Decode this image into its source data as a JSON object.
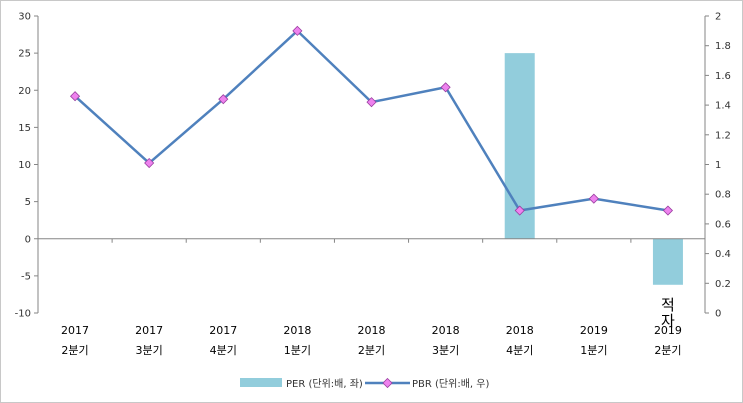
{
  "chart_data": {
    "type": "bar+line",
    "categories": [
      [
        "2017",
        "2분기"
      ],
      [
        "2017",
        "3분기"
      ],
      [
        "2017",
        "4분기"
      ],
      [
        "2018",
        "1분기"
      ],
      [
        "2018",
        "2분기"
      ],
      [
        "2018",
        "3분기"
      ],
      [
        "2018",
        "4분기"
      ],
      [
        "2019",
        "1분기"
      ],
      [
        "2019",
        "2분기"
      ]
    ],
    "series": [
      {
        "name": "PER (단위:배, 좌)",
        "type": "bar",
        "axis": "left",
        "color": "#92cddc",
        "values": [
          null,
          null,
          null,
          null,
          null,
          null,
          25,
          null,
          -6.2
        ]
      },
      {
        "name": "PBR (단위:배, 우)",
        "type": "line",
        "axis": "right",
        "color": "#4f81bd",
        "marker_color": "#ee82ee",
        "values": [
          1.46,
          1.01,
          1.44,
          1.9,
          1.42,
          1.52,
          0.69,
          0.77,
          0.69
        ]
      }
    ],
    "y_left": {
      "ylim": [
        -10,
        30
      ],
      "ticks": [
        -10,
        -5,
        0,
        5,
        10,
        15,
        20,
        25,
        30
      ]
    },
    "y_right": {
      "ylim": [
        0,
        2
      ],
      "ticks": [
        "0",
        "0.2",
        "0.4",
        "0.6",
        "0.8",
        "1",
        "1.2",
        "1.4",
        "1.6",
        "1.8",
        "2"
      ]
    },
    "annotations": [
      {
        "category_index": 8,
        "text": "적자"
      }
    ],
    "legend_position": "bottom",
    "grid": false
  }
}
